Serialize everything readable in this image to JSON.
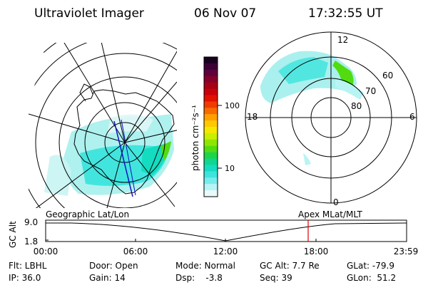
{
  "header": {
    "instrument": "Ultraviolet Imager",
    "date": "06 Nov 07",
    "time": "17:32:55 UT"
  },
  "colorbar": {
    "unit_label": "photon cm⁻²s⁻¹",
    "ticks": [
      "100",
      "10"
    ],
    "colors": [
      "#1a0020",
      "#3b0036",
      "#5e003c",
      "#83002c",
      "#a50016",
      "#c8000a",
      "#e21000",
      "#f03b00",
      "#f86a00",
      "#ffa000",
      "#ffc800",
      "#f5e800",
      "#c8ee00",
      "#8ee600",
      "#52dc10",
      "#1ed44a",
      "#0ed690",
      "#14dcc0",
      "#3ce4dc",
      "#78ecec",
      "#b8f4f4",
      "#e8fafa"
    ]
  },
  "polar_plot": {
    "label_top": "12",
    "label_left": "18",
    "label_right": "6",
    "label_bottom": "0",
    "ring_labels": [
      "60",
      "70",
      "80"
    ]
  },
  "timeline": {
    "left_title": "Geographic Lat/Lon",
    "right_title": "Apex MLat/MLT",
    "ylabel": "GC Alt",
    "ytick_top": "9.0",
    "ytick_bottom": "1.8",
    "xticks": [
      "00:00",
      "06:00",
      "12:00",
      "18:00",
      "23:59"
    ]
  },
  "status": {
    "row1": {
      "flt": "Flt: LBHL",
      "door": "Door: Open",
      "mode": "Mode: Normal",
      "alt": "GC Alt: 7.7 Re",
      "glat": "GLat: -79.9"
    },
    "row2": {
      "ip": "IP: 36.0",
      "gain": "Gain: 14",
      "dsp": "Dsp:    -3.8",
      "seq": "Seq: 39",
      "glon": "GLon:  51.2"
    }
  }
}
